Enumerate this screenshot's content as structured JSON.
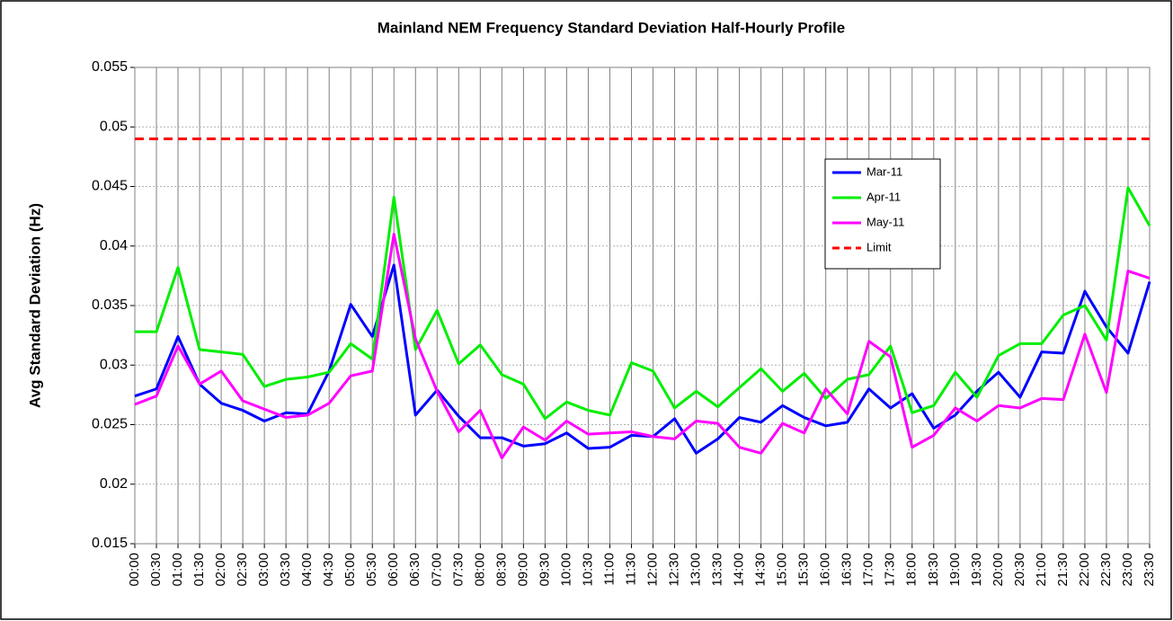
{
  "chart_data": {
    "type": "line",
    "title": "Mainland NEM Frequency Standard Deviation Half-Hourly Profile",
    "y_label": "Avg Standard Deviation (Hz)",
    "categories": [
      "00:00",
      "00:30",
      "01:00",
      "01:30",
      "02:00",
      "02:30",
      "03:00",
      "03:30",
      "04:00",
      "04:30",
      "05:00",
      "05:30",
      "06:00",
      "06:30",
      "07:00",
      "07:30",
      "08:00",
      "08:30",
      "09:00",
      "09:30",
      "10:00",
      "10:30",
      "11:00",
      "11:30",
      "12:00",
      "12:30",
      "13:00",
      "13:30",
      "14:00",
      "14:30",
      "15:00",
      "15:30",
      "16:00",
      "16:30",
      "17:00",
      "17:30",
      "18:00",
      "18:30",
      "19:00",
      "19:30",
      "20:00",
      "20:30",
      "21:00",
      "21:30",
      "22:00",
      "22:30",
      "23:00",
      "23:30"
    ],
    "series": [
      {
        "name": "Mar-11",
        "color": "#0000ff",
        "values": [
          0.0274,
          0.028,
          0.0324,
          0.0284,
          0.0268,
          0.0262,
          0.0253,
          0.026,
          0.0259,
          0.0295,
          0.0351,
          0.0324,
          0.0384,
          0.0258,
          0.0279,
          0.0257,
          0.0239,
          0.0239,
          0.0232,
          0.0234,
          0.0243,
          0.023,
          0.0231,
          0.0241,
          0.024,
          0.0255,
          0.0226,
          0.0238,
          0.0256,
          0.0252,
          0.0266,
          0.0256,
          0.0249,
          0.0252,
          0.028,
          0.0264,
          0.0276,
          0.0247,
          0.0258,
          0.0278,
          0.0294,
          0.0273,
          0.0311,
          0.031,
          0.0362,
          0.0332,
          0.031,
          0.037
        ]
      },
      {
        "name": "Apr-11",
        "color": "#00ee00",
        "values": [
          0.0328,
          0.0328,
          0.0382,
          0.0313,
          0.0311,
          0.0309,
          0.0282,
          0.0288,
          0.029,
          0.0294,
          0.0318,
          0.0305,
          0.0441,
          0.0313,
          0.0346,
          0.0301,
          0.0317,
          0.0292,
          0.0284,
          0.0255,
          0.0269,
          0.0262,
          0.0258,
          0.0302,
          0.0295,
          0.0264,
          0.0278,
          0.0265,
          0.0281,
          0.0297,
          0.0278,
          0.0293,
          0.0272,
          0.0288,
          0.0292,
          0.0316,
          0.026,
          0.0266,
          0.0294,
          0.0273,
          0.0308,
          0.0318,
          0.0318,
          0.0342,
          0.035,
          0.0321,
          0.0449,
          0.0417
        ]
      },
      {
        "name": "May-11",
        "color": "#ff00ff",
        "values": [
          0.0267,
          0.0274,
          0.0316,
          0.0284,
          0.0295,
          0.027,
          0.0263,
          0.0256,
          0.0258,
          0.0268,
          0.0291,
          0.0295,
          0.041,
          0.0322,
          0.0278,
          0.0244,
          0.0262,
          0.0222,
          0.0248,
          0.0237,
          0.0253,
          0.0242,
          0.0243,
          0.0244,
          0.024,
          0.0238,
          0.0253,
          0.0251,
          0.0231,
          0.0226,
          0.0251,
          0.0243,
          0.028,
          0.0259,
          0.032,
          0.0307,
          0.0231,
          0.0241,
          0.0264,
          0.0253,
          0.0266,
          0.0264,
          0.0272,
          0.0271,
          0.0326,
          0.0277,
          0.0379,
          0.0373
        ]
      },
      {
        "name": "Limit",
        "color": "#ff0000",
        "dashed": true,
        "values": [
          0.049,
          0.049,
          0.049,
          0.049,
          0.049,
          0.049,
          0.049,
          0.049,
          0.049,
          0.049,
          0.049,
          0.049,
          0.049,
          0.049,
          0.049,
          0.049,
          0.049,
          0.049,
          0.049,
          0.049,
          0.049,
          0.049,
          0.049,
          0.049,
          0.049,
          0.049,
          0.049,
          0.049,
          0.049,
          0.049,
          0.049,
          0.049,
          0.049,
          0.049,
          0.049,
          0.049,
          0.049,
          0.049,
          0.049,
          0.049,
          0.049,
          0.049,
          0.049,
          0.049,
          0.049,
          0.049,
          0.049,
          0.049
        ]
      }
    ],
    "ylim": [
      0.015,
      0.055
    ],
    "yticks": [
      0.015,
      0.02,
      0.025,
      0.03,
      0.035,
      0.04,
      0.045,
      0.05,
      0.055
    ],
    "grid": true,
    "legend": "upper-right"
  }
}
